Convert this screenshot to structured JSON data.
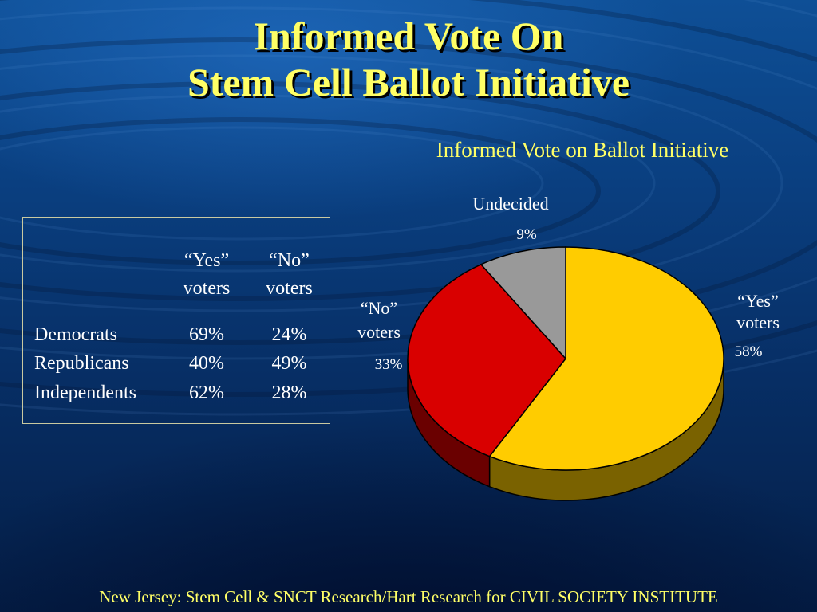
{
  "slide": {
    "title_line1": "Informed Vote On",
    "title_line2": "Stem Cell Ballot Initiative",
    "footer": "New Jersey: Stem Cell & SNCT Research/Hart Research for CIVIL SOCIETY INSTITUTE"
  },
  "table": {
    "headers": [
      {
        "line1": "“Yes”",
        "line2": "voters"
      },
      {
        "line1": "“No”",
        "line2": "voters"
      }
    ],
    "rows": [
      {
        "party": "Democrats",
        "yes": "69%",
        "no": "24%"
      },
      {
        "party": "Republicans",
        "yes": "40%",
        "no": "49%"
      },
      {
        "party": "Independents",
        "yes": "62%",
        "no": "28%"
      }
    ]
  },
  "chart_data": {
    "type": "pie",
    "title": "Informed Vote on Ballot Initiative",
    "slices": [
      {
        "label_line1": "“Yes”",
        "label_line2": "voters",
        "value": 58,
        "value_label": "58%",
        "color": "#ffcc00",
        "side_color": "#7a6200"
      },
      {
        "label_line1": "“No”",
        "label_line2": "voters",
        "value": 33,
        "value_label": "33%",
        "color": "#d90000",
        "side_color": "#6a0000"
      },
      {
        "label_line1": "Undecided",
        "label_line2": "",
        "value": 9,
        "value_label": "9%",
        "color": "#999999",
        "side_color": "#555555"
      }
    ]
  }
}
